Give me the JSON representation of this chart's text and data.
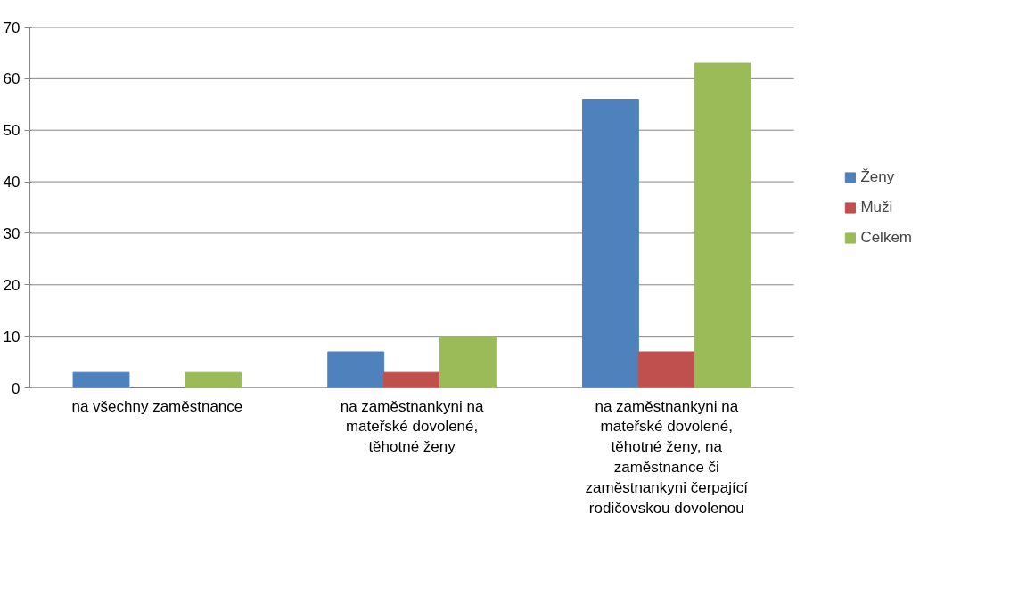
{
  "chart_data": {
    "type": "bar",
    "categories": [
      "na všechny zaměstnance",
      "na zaměstnankyni na mateřské dovolené, těhotné ženy",
      "na zaměstnankyni na mateřské dovolené, těhotné ženy, na zaměstnance či zaměstnankyni čerpající rodičovskou dovolenou"
    ],
    "series": [
      {
        "name": "Ženy",
        "color": "#4f81bd",
        "values": [
          3,
          7,
          56
        ]
      },
      {
        "name": "Muži",
        "color": "#c0504d",
        "values": [
          0,
          3,
          7
        ]
      },
      {
        "name": "Celkem",
        "color": "#9bbb59",
        "values": [
          3,
          10,
          63
        ]
      }
    ],
    "ylim": [
      0,
      70
    ],
    "yticks": [
      0,
      10,
      20,
      30,
      40,
      50,
      60,
      70
    ],
    "grid": "y",
    "legend": "right"
  }
}
